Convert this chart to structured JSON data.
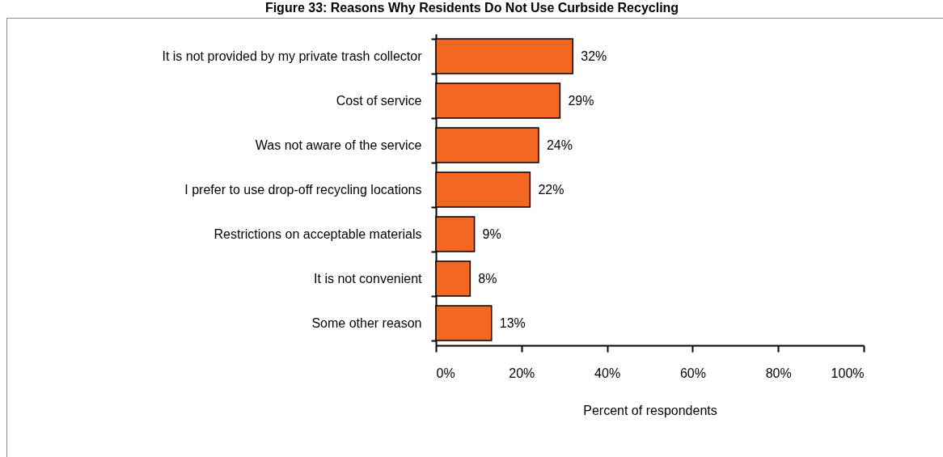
{
  "chart_data": {
    "type": "bar",
    "orientation": "horizontal",
    "title": "Figure 33: Reasons Why Residents Do Not Use Curbside Recycling",
    "xlabel": "Percent of respondents",
    "categories": [
      "It is not provided by my private trash collector",
      "Cost of service",
      "Was not aware of the service",
      "I prefer to use drop-off recycling locations",
      "Restrictions on acceptable materials",
      "It is not convenient",
      "Some other reason"
    ],
    "values": [
      32,
      29,
      24,
      22,
      9,
      8,
      13
    ],
    "value_labels": [
      "32%",
      "29%",
      "24%",
      "22%",
      "9%",
      "8%",
      "13%"
    ],
    "color": "#f26722",
    "xlim": [
      0,
      100
    ],
    "xticks": [
      {
        "value": 0,
        "label": "0%"
      },
      {
        "value": 20,
        "label": "20%"
      },
      {
        "value": 40,
        "label": "40%"
      },
      {
        "value": 60,
        "label": "60%"
      },
      {
        "value": 80,
        "label": "80%"
      },
      {
        "value": 100,
        "label": "100%"
      }
    ]
  }
}
